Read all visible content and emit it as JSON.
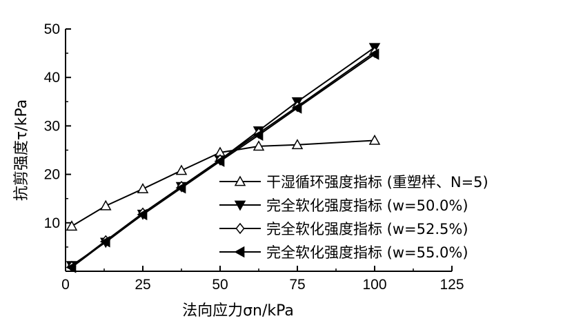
{
  "chart_data": {
    "type": "line",
    "xlabel": "法向应力σn/kPa",
    "ylabel": "抗剪强度τ/kPa",
    "xlim": [
      0,
      125
    ],
    "ylim": [
      0,
      50
    ],
    "xticks": [
      0,
      25,
      50,
      75,
      100,
      125
    ],
    "yticks": [
      10,
      20,
      30,
      40,
      50
    ],
    "xtick_labels": [
      "0",
      "25",
      "50",
      "75",
      "100",
      "125"
    ],
    "ytick_labels": [
      "10",
      "20",
      "30",
      "40",
      "50"
    ],
    "grid": false,
    "legend_position": "bottom-right",
    "series": [
      {
        "name": "干湿循环强度指标 (重塑样、N=5)",
        "marker": "triangle-up-open",
        "x": [
          2,
          13,
          25,
          37.5,
          50,
          62.5,
          75,
          100
        ],
        "y": [
          9.3,
          13.5,
          17,
          20.8,
          24.5,
          25.8,
          26.1,
          27
        ]
      },
      {
        "name": "完全软化强度指标 (w=50.0%)",
        "marker": "triangle-down-filled",
        "x": [
          2,
          13,
          25,
          37.5,
          50,
          62.5,
          75,
          100
        ],
        "y": [
          1.2,
          6,
          11.8,
          17.5,
          23,
          29,
          35,
          46.2
        ]
      },
      {
        "name": "完全软化强度指标 (w=52.5%)",
        "marker": "diamond-open",
        "x": [
          2,
          13,
          25,
          37.5,
          50,
          62.5,
          75,
          100
        ],
        "y": [
          1,
          6.3,
          12,
          17.5,
          23,
          28.5,
          34,
          45.2
        ]
      },
      {
        "name": "完全软化强度指标 (w=55.0%)",
        "marker": "triangle-left-filled",
        "x": [
          2,
          13,
          25,
          37.5,
          50,
          62.5,
          75,
          100
        ],
        "y": [
          0.8,
          6.1,
          11.7,
          17.2,
          22.7,
          28.1,
          33.7,
          44.8
        ]
      }
    ]
  }
}
